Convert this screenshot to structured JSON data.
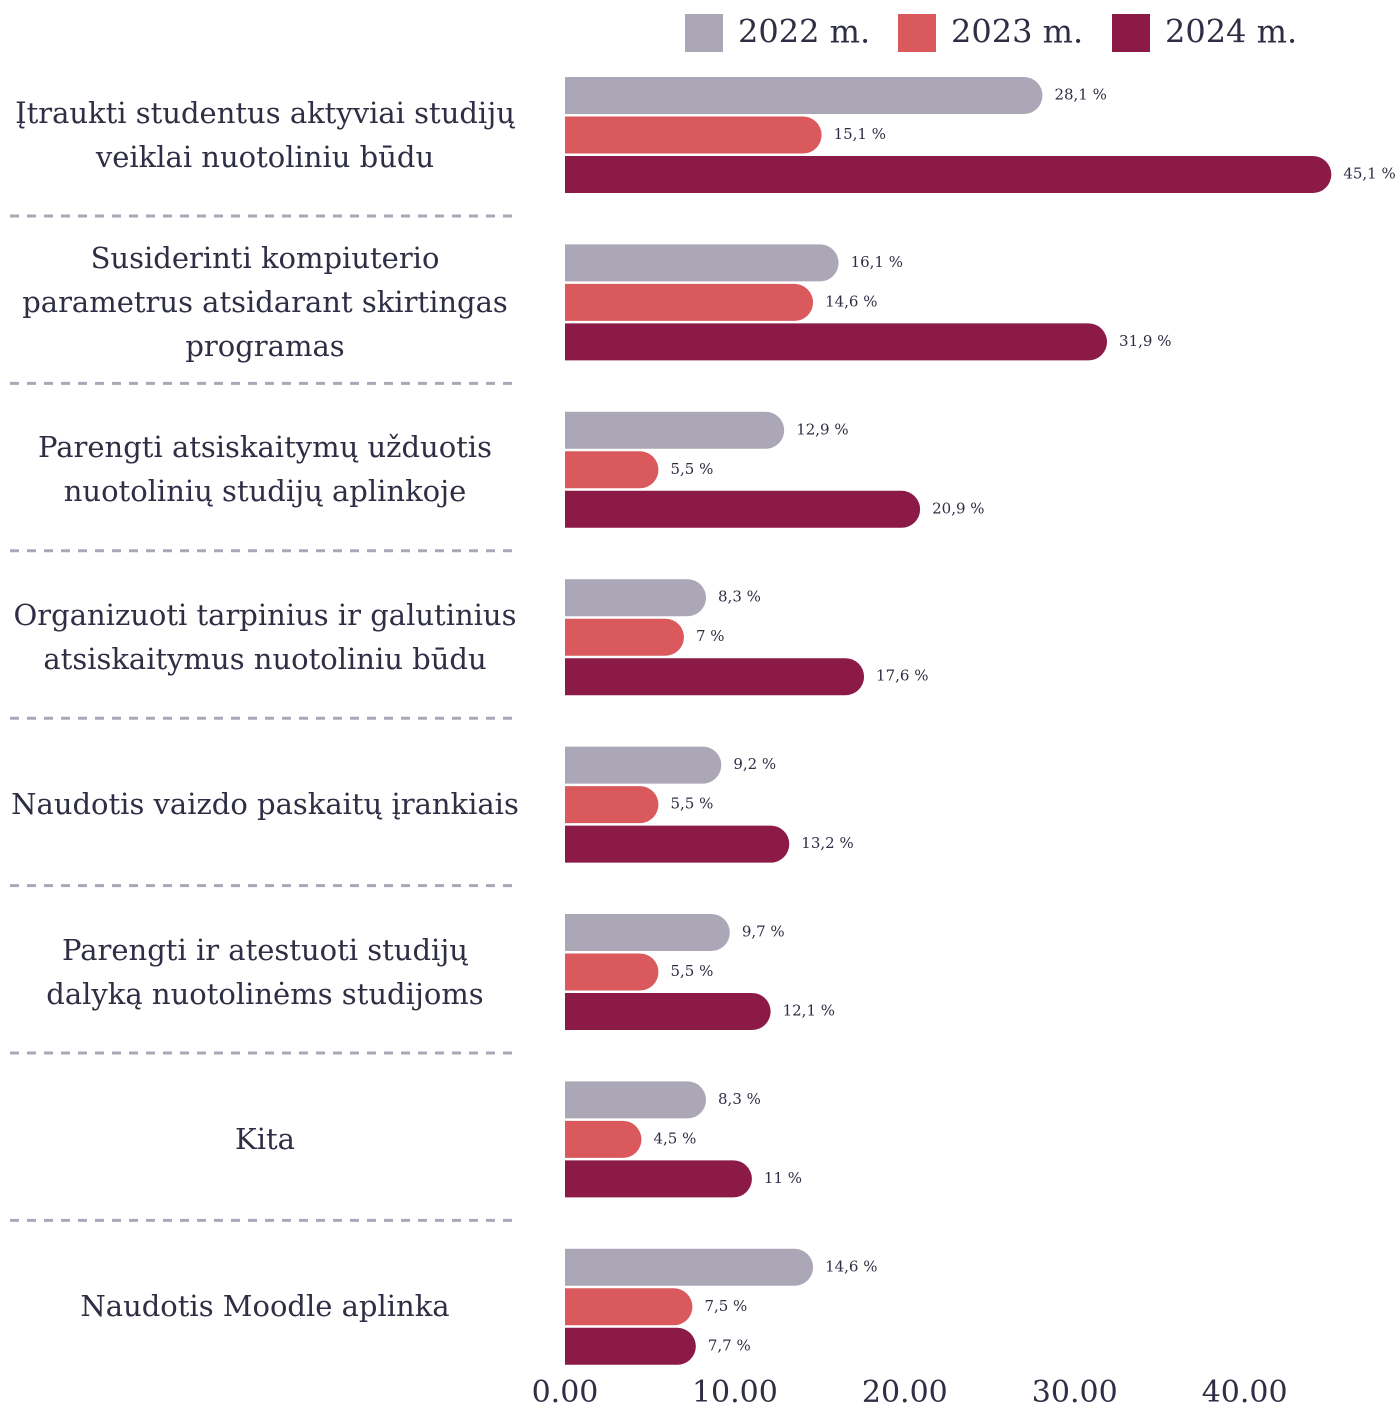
{
  "chart_data": {
    "type": "bar",
    "orientation": "horizontal",
    "categories": [
      "Įtraukti studentus aktyviai studijų veiklai nuotoliniu būdu",
      "Susiderinti kompiuterio parametrus atsidarant skirtingas programas",
      "Parengti atsiskaitymų užduotis nuotolinių studijų aplinkoje",
      "Organizuoti tarpinius ir galutinius atsiskaitymus nuotoliniu būdu",
      "Naudotis vaizdo paskaitų įrankiais",
      "Parengti ir atestuoti studijų dalyką nuotolinėms studijoms",
      "Kita",
      "Naudotis Moodle aplinka"
    ],
    "series": [
      {
        "name": "2022 m.",
        "color": "#aba7b7",
        "values": [
          28.1,
          16.1,
          12.9,
          8.3,
          9.2,
          9.7,
          8.3,
          14.6
        ],
        "value_labels": [
          "28,1 %",
          "16,1 %",
          "12,9 %",
          "8,3 %",
          "9,2 %",
          "9,7 %",
          "8,3 %",
          "14,6 %"
        ]
      },
      {
        "name": "2023 m.",
        "color": "#d9595c",
        "values": [
          15.1,
          14.6,
          5.5,
          7,
          5.5,
          5.5,
          4.5,
          7.5
        ],
        "value_labels": [
          "15,1 %",
          "14,6 %",
          "5,5 %",
          "7 %",
          "5,5 %",
          "5,5 %",
          "4,5 %",
          "7,5 %"
        ]
      },
      {
        "name": "2024 m.",
        "color": "#8c1a47",
        "values": [
          45.1,
          31.9,
          20.9,
          17.6,
          13.2,
          12.1,
          11,
          7.7
        ],
        "value_labels": [
          "45,1 %",
          "31,9 %",
          "20,9 %",
          "17,6 %",
          "13,2 %",
          "12,1 %",
          "11 %",
          "7,7 %"
        ]
      }
    ],
    "xlim": [
      0,
      48.2
    ],
    "xticks": [
      {
        "value": 0,
        "label": "0.00"
      },
      {
        "value": 10,
        "label": "10.00"
      },
      {
        "value": 20,
        "label": "20.00"
      },
      {
        "value": 30,
        "label": "30.00"
      },
      {
        "value": 40,
        "label": "40.00"
      }
    ],
    "legend": "top-right"
  }
}
